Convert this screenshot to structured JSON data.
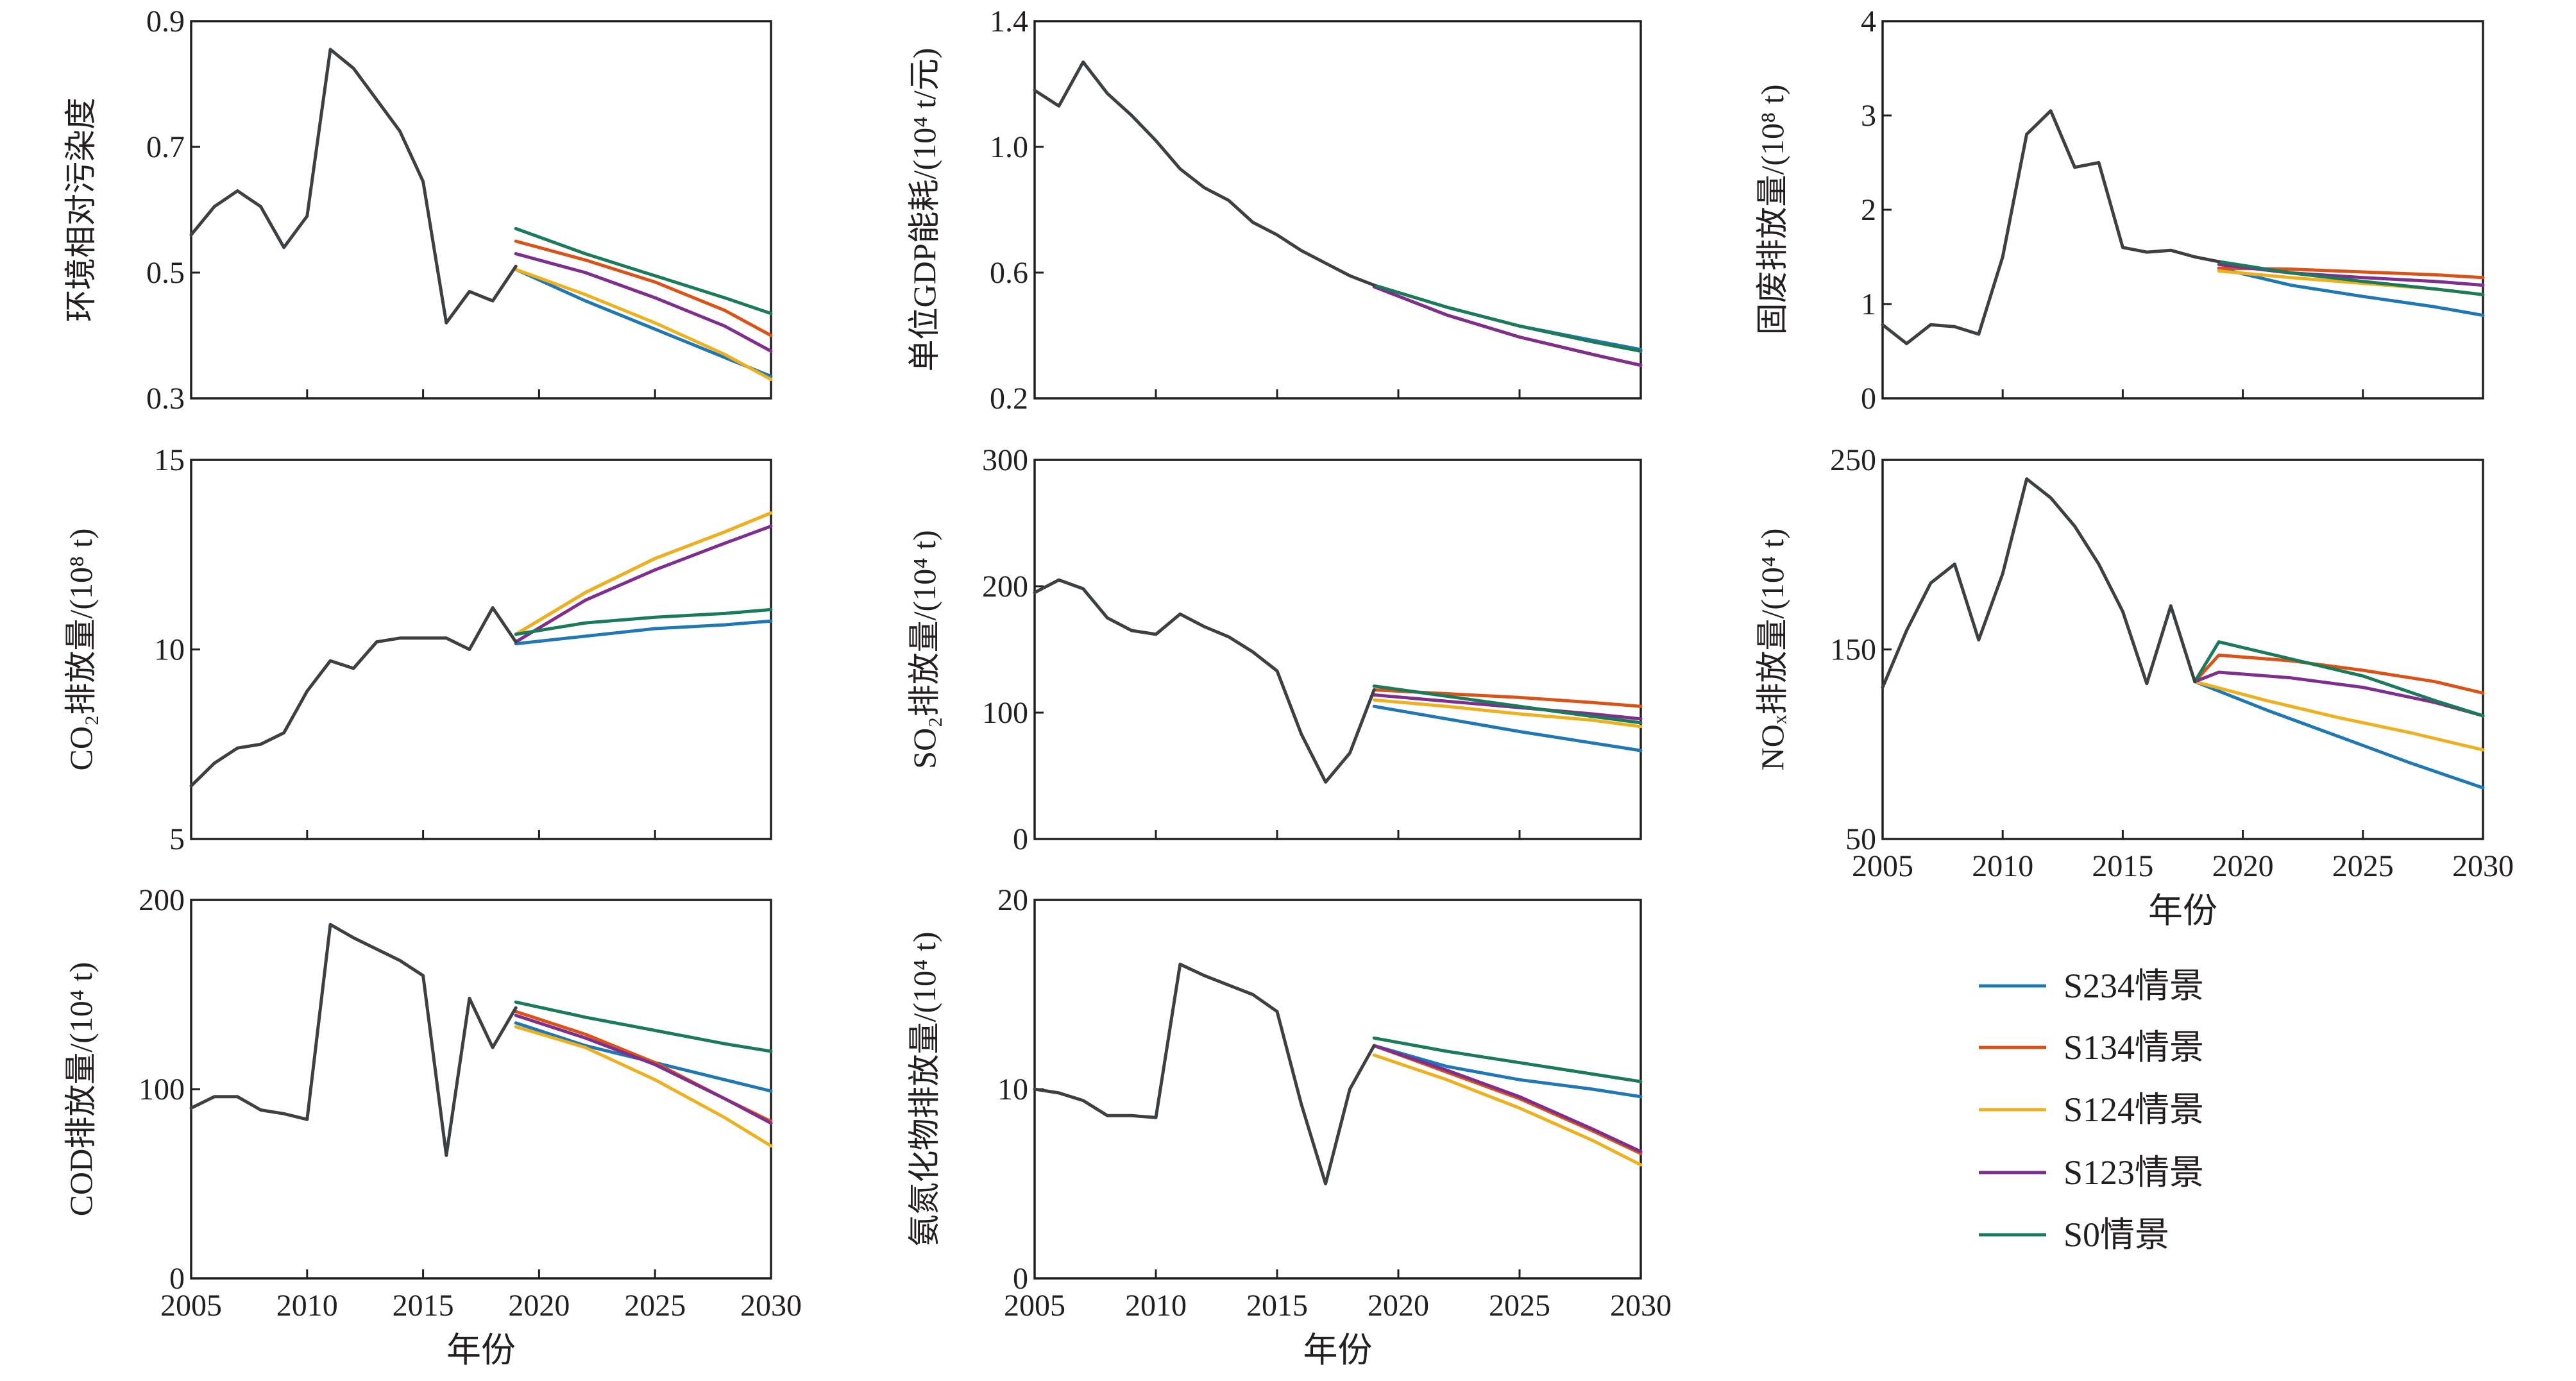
{
  "colors": {
    "S234": "#1f77b4",
    "S134": "#d95319",
    "S124": "#edb120",
    "S123": "#7e2f8e",
    "S0": "#1b7a5a",
    "history": "#3c4043"
  },
  "legend": {
    "items": [
      {
        "key": "S234",
        "label": "S234情景"
      },
      {
        "key": "S134",
        "label": "S134情景"
      },
      {
        "key": "S124",
        "label": "S124情景"
      },
      {
        "key": "S123",
        "label": "S123情景"
      },
      {
        "key": "S0",
        "label": "S0情景"
      }
    ]
  },
  "chart_data": [
    {
      "type": "line",
      "ylabel": "环境相对污染度",
      "xlabel": "",
      "xlim": [
        2005,
        2030
      ],
      "ylim": [
        0.3,
        0.9
      ],
      "yticks": [
        "0.3",
        "0.5",
        "0.7",
        "0.9"
      ],
      "xticks": [],
      "history": {
        "x": [
          2005,
          2006,
          2007,
          2008,
          2009,
          2010,
          2011,
          2012,
          2013,
          2014,
          2015,
          2016,
          2017,
          2018,
          2019
        ],
        "y": [
          0.56,
          0.605,
          0.63,
          0.605,
          0.54,
          0.59,
          0.855,
          0.825,
          0.775,
          0.725,
          0.645,
          0.42,
          0.47,
          0.455,
          0.51
        ]
      },
      "scenarios": {
        "S234": {
          "x": [
            2019,
            2022,
            2025,
            2028,
            2030
          ],
          "y": [
            0.505,
            0.455,
            0.41,
            0.365,
            0.335
          ]
        },
        "S134": {
          "x": [
            2019,
            2022,
            2025,
            2028,
            2030
          ],
          "y": [
            0.55,
            0.52,
            0.485,
            0.44,
            0.4
          ]
        },
        "S124": {
          "x": [
            2019,
            2022,
            2025,
            2028,
            2030
          ],
          "y": [
            0.505,
            0.465,
            0.42,
            0.37,
            0.33
          ]
        },
        "S123": {
          "x": [
            2019,
            2022,
            2025,
            2028,
            2030
          ],
          "y": [
            0.53,
            0.5,
            0.46,
            0.415,
            0.375
          ]
        },
        "S0": {
          "x": [
            2019,
            2022,
            2025,
            2028,
            2030
          ],
          "y": [
            0.57,
            0.53,
            0.495,
            0.46,
            0.435
          ]
        }
      }
    },
    {
      "type": "line",
      "ylabel": "单位GDP能耗/(10⁴ t/元)",
      "xlabel": "",
      "xlim": [
        2005,
        2030
      ],
      "ylim": [
        0.2,
        1.4
      ],
      "yticks": [
        "0.2",
        "0.6",
        "1.0",
        "1.4"
      ],
      "xticks": [],
      "history": {
        "x": [
          2005,
          2006,
          2007,
          2008,
          2009,
          2010,
          2011,
          2012,
          2013,
          2014,
          2015,
          2016,
          2017,
          2018,
          2019
        ],
        "y": [
          1.18,
          1.13,
          1.27,
          1.17,
          1.1,
          1.02,
          0.93,
          0.87,
          0.83,
          0.76,
          0.72,
          0.67,
          0.63,
          0.59,
          0.56
        ]
      },
      "scenarios": {
        "S234": {
          "x": [
            2019,
            2022,
            2025,
            2028,
            2030
          ],
          "y": [
            0.56,
            0.49,
            0.43,
            0.385,
            0.355
          ]
        },
        "S134": {
          "x": [
            2019,
            2022,
            2025,
            2028,
            2030
          ],
          "y": [
            0.555,
            0.465,
            0.395,
            0.34,
            0.305
          ]
        },
        "S124": {
          "x": [
            2019,
            2022,
            2025,
            2028,
            2030
          ],
          "y": [
            0.555,
            0.465,
            0.395,
            0.34,
            0.305
          ]
        },
        "S123": {
          "x": [
            2019,
            2022,
            2025,
            2028,
            2030
          ],
          "y": [
            0.555,
            0.465,
            0.395,
            0.34,
            0.305
          ]
        },
        "S0": {
          "x": [
            2019,
            2022,
            2025,
            2028,
            2030
          ],
          "y": [
            0.56,
            0.49,
            0.43,
            0.38,
            0.35
          ]
        }
      }
    },
    {
      "type": "line",
      "ylabel": "固废排放量/(10⁸ t)",
      "xlabel": "",
      "xlim": [
        2005,
        2030
      ],
      "ylim": [
        0,
        4
      ],
      "yticks": [
        "0",
        "1",
        "2",
        "3",
        "4"
      ],
      "xticks": [],
      "history": {
        "x": [
          2005,
          2006,
          2007,
          2008,
          2009,
          2010,
          2011,
          2012,
          2013,
          2014,
          2015,
          2016,
          2017,
          2018,
          2019
        ],
        "y": [
          0.78,
          0.58,
          0.78,
          0.76,
          0.68,
          1.5,
          2.8,
          3.05,
          2.45,
          2.5,
          1.6,
          1.55,
          1.57,
          1.5,
          1.45
        ]
      },
      "scenarios": {
        "S234": {
          "x": [
            2019,
            2022,
            2025,
            2028,
            2030
          ],
          "y": [
            1.38,
            1.2,
            1.08,
            0.97,
            0.88
          ]
        },
        "S134": {
          "x": [
            2019,
            2022,
            2025,
            2028,
            2030
          ],
          "y": [
            1.38,
            1.37,
            1.34,
            1.31,
            1.28
          ]
        },
        "S124": {
          "x": [
            2019,
            2022,
            2025,
            2028,
            2030
          ],
          "y": [
            1.35,
            1.28,
            1.22,
            1.16,
            1.1
          ]
        },
        "S123": {
          "x": [
            2019,
            2022,
            2025,
            2028,
            2030
          ],
          "y": [
            1.42,
            1.33,
            1.28,
            1.24,
            1.2
          ]
        },
        "S0": {
          "x": [
            2019,
            2022,
            2025,
            2028,
            2030
          ],
          "y": [
            1.45,
            1.33,
            1.24,
            1.16,
            1.1
          ]
        }
      }
    },
    {
      "type": "line",
      "ylabel": "CO₂排放量/(10⁸ t)",
      "xlabel": "",
      "xlim": [
        2005,
        2030
      ],
      "ylim": [
        5,
        15
      ],
      "yticks": [
        "5",
        "10",
        "15"
      ],
      "xticks": [],
      "history": {
        "x": [
          2005,
          2006,
          2007,
          2008,
          2009,
          2010,
          2011,
          2012,
          2013,
          2014,
          2015,
          2016,
          2017,
          2018,
          2019
        ],
        "y": [
          6.4,
          7.0,
          7.4,
          7.5,
          7.8,
          8.9,
          9.7,
          9.5,
          10.2,
          10.3,
          10.3,
          10.3,
          10.0,
          11.1,
          10.2
        ]
      },
      "scenarios": {
        "S234": {
          "x": [
            2019,
            2022,
            2025,
            2028,
            2030
          ],
          "y": [
            10.15,
            10.35,
            10.55,
            10.65,
            10.75
          ]
        },
        "S134": {
          "x": [
            2019,
            2022,
            2025,
            2028,
            2030
          ],
          "y": [
            10.4,
            11.5,
            12.4,
            13.1,
            13.6
          ]
        },
        "S124": {
          "x": [
            2019,
            2022,
            2025,
            2028,
            2030
          ],
          "y": [
            10.4,
            11.5,
            12.4,
            13.1,
            13.6
          ]
        },
        "S123": {
          "x": [
            2019,
            2022,
            2025,
            2028,
            2030
          ],
          "y": [
            10.2,
            11.3,
            12.1,
            12.8,
            13.25
          ]
        },
        "S0": {
          "x": [
            2019,
            2022,
            2025,
            2028,
            2030
          ],
          "y": [
            10.4,
            10.7,
            10.85,
            10.95,
            11.05
          ]
        }
      }
    },
    {
      "type": "line",
      "ylabel": "SO₂排放量/(10⁴ t)",
      "xlabel": "",
      "xlim": [
        2005,
        2030
      ],
      "ylim": [
        0,
        300
      ],
      "yticks": [
        "0",
        "100",
        "200",
        "300"
      ],
      "xticks": [],
      "history": {
        "x": [
          2005,
          2006,
          2007,
          2008,
          2009,
          2010,
          2011,
          2012,
          2013,
          2014,
          2015,
          2016,
          2017,
          2018,
          2019
        ],
        "y": [
          195,
          205,
          198,
          175,
          165,
          162,
          178,
          168,
          160,
          148,
          133,
          83,
          45,
          68,
          118
        ]
      },
      "scenarios": {
        "S234": {
          "x": [
            2019,
            2022,
            2025,
            2028,
            2030
          ],
          "y": [
            105,
            95,
            85,
            76,
            70
          ]
        },
        "S134": {
          "x": [
            2019,
            2022,
            2025,
            2028,
            2030
          ],
          "y": [
            118,
            115,
            112,
            108,
            105
          ]
        },
        "S124": {
          "x": [
            2019,
            2022,
            2025,
            2028,
            2030
          ],
          "y": [
            110,
            105,
            99,
            94,
            89
          ]
        },
        "S123": {
          "x": [
            2019,
            2022,
            2025,
            2028,
            2030
          ],
          "y": [
            114,
            109,
            104,
            99,
            95
          ]
        },
        "S0": {
          "x": [
            2019,
            2022,
            2025,
            2028,
            2030
          ],
          "y": [
            121,
            113,
            105,
            97,
            92
          ]
        }
      }
    },
    {
      "type": "line",
      "ylabel": "NOₓ排放量/(10⁴ t)",
      "xlabel": "年份",
      "xlim": [
        2005,
        2030
      ],
      "ylim": [
        50,
        250
      ],
      "yticks": [
        "50",
        "150",
        "250"
      ],
      "xticks": [
        "2005",
        "2010",
        "2015",
        "2020",
        "2025",
        "2030"
      ],
      "history": {
        "x": [
          2005,
          2006,
          2007,
          2008,
          2009,
          2010,
          2011,
          2012,
          2013,
          2014,
          2015,
          2016,
          2017,
          2018
        ],
        "y": [
          130,
          160,
          185,
          195,
          155,
          190,
          240,
          230,
          215,
          195,
          170,
          132,
          173,
          133
        ]
      },
      "scenarios": {
        "S234": {
          "x": [
            2018,
            2021,
            2024,
            2027,
            2030
          ],
          "y": [
            133,
            118,
            104,
            90,
            77
          ]
        },
        "S134": {
          "x": [
            2018,
            2019,
            2022,
            2025,
            2028,
            2030
          ],
          "y": [
            133,
            147,
            144,
            139,
            133,
            127
          ]
        },
        "S124": {
          "x": [
            2018,
            2021,
            2024,
            2027,
            2030
          ],
          "y": [
            133,
            123,
            114,
            106,
            97
          ]
        },
        "S123": {
          "x": [
            2018,
            2019,
            2022,
            2025,
            2028,
            2030
          ],
          "y": [
            133,
            138,
            135,
            130,
            122,
            115
          ]
        },
        "S0": {
          "x": [
            2018,
            2019,
            2022,
            2025,
            2028,
            2030
          ],
          "y": [
            133,
            154,
            145,
            136,
            123,
            115
          ]
        }
      }
    },
    {
      "type": "line",
      "ylabel": "COD排放量/(10⁴ t)",
      "xlabel": "年份",
      "xlim": [
        2005,
        2030
      ],
      "ylim": [
        0,
        200
      ],
      "yticks": [
        "0",
        "100",
        "200"
      ],
      "xticks": [
        "2005",
        "2010",
        "2015",
        "2020",
        "2025",
        "2030"
      ],
      "history": {
        "x": [
          2005,
          2006,
          2007,
          2008,
          2009,
          2010,
          2011,
          2012,
          2013,
          2014,
          2015,
          2016,
          2017,
          2018,
          2019
        ],
        "y": [
          90,
          96,
          96,
          89,
          87,
          84,
          187,
          180,
          174,
          168,
          160,
          65,
          148,
          122,
          143
        ]
      },
      "scenarios": {
        "S234": {
          "x": [
            2019,
            2022,
            2025,
            2028,
            2030
          ],
          "y": [
            135,
            123,
            114,
            105,
            99
          ]
        },
        "S134": {
          "x": [
            2019,
            2022,
            2025,
            2028,
            2030
          ],
          "y": [
            141,
            129,
            114,
            95,
            83
          ]
        },
        "S124": {
          "x": [
            2019,
            2022,
            2025,
            2028,
            2030
          ],
          "y": [
            133,
            122,
            105,
            85,
            70
          ]
        },
        "S123": {
          "x": [
            2019,
            2022,
            2025,
            2028,
            2030
          ],
          "y": [
            139,
            127,
            113,
            95,
            82
          ]
        },
        "S0": {
          "x": [
            2019,
            2022,
            2025,
            2028,
            2030
          ],
          "y": [
            146,
            138,
            131,
            124,
            120
          ]
        }
      }
    },
    {
      "type": "line",
      "ylabel": "氨氮化物排放量/(10⁴ t)",
      "xlabel": "年份",
      "xlim": [
        2005,
        2030
      ],
      "ylim": [
        0,
        20
      ],
      "yticks": [
        "0",
        "10",
        "20"
      ],
      "xticks": [
        "2005",
        "2010",
        "2015",
        "2020",
        "2025",
        "2030"
      ],
      "history": {
        "x": [
          2005,
          2006,
          2007,
          2008,
          2009,
          2010,
          2011,
          2012,
          2013,
          2014,
          2015,
          2016,
          2017,
          2018,
          2019
        ],
        "y": [
          10.0,
          9.8,
          9.4,
          8.6,
          8.6,
          8.5,
          16.6,
          16.0,
          15.5,
          15.0,
          14.1,
          9.2,
          5.0,
          10.0,
          12.3
        ]
      },
      "scenarios": {
        "S234": {
          "x": [
            2019,
            2022,
            2025,
            2028,
            2030
          ],
          "y": [
            12.3,
            11.2,
            10.5,
            10.0,
            9.6
          ]
        },
        "S134": {
          "x": [
            2019,
            2022,
            2025,
            2028,
            2030
          ],
          "y": [
            12.3,
            10.9,
            9.5,
            7.8,
            6.6
          ]
        },
        "S124": {
          "x": [
            2019,
            2022,
            2025,
            2028,
            2030
          ],
          "y": [
            11.8,
            10.5,
            9.0,
            7.3,
            6.0
          ]
        },
        "S123": {
          "x": [
            2019,
            2022,
            2025,
            2028,
            2030
          ],
          "y": [
            12.3,
            11.0,
            9.6,
            7.9,
            6.7
          ]
        },
        "S0": {
          "x": [
            2019,
            2022,
            2025,
            2028,
            2030
          ],
          "y": [
            12.7,
            12.0,
            11.4,
            10.8,
            10.4
          ]
        }
      }
    }
  ]
}
